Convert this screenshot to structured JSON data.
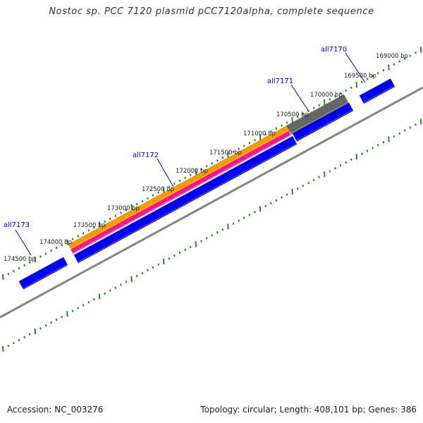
{
  "title": "Nostoc sp. PCC 7120 plasmid pCC7120alpha, complete sequence",
  "footer": {
    "accession": "Accession: NC_003276",
    "topology": "Topology: circular; Length: 408,101 bp; Genes: 386"
  },
  "ticks": [
    {
      "label": "169000 bp",
      "pos": 169000
    },
    {
      "label": "169500 bp",
      "pos": 169500
    },
    {
      "label": "170000 bp",
      "pos": 170000
    },
    {
      "label": "170500 bp",
      "pos": 170500
    },
    {
      "label": "171000 bp",
      "pos": 171000
    },
    {
      "label": "171500 bp",
      "pos": 171500
    },
    {
      "label": "172000 bp",
      "pos": 172000
    },
    {
      "label": "172500 bp",
      "pos": 172500
    },
    {
      "label": "173000 bp",
      "pos": 173000
    },
    {
      "label": "173500 bp",
      "pos": 173500
    },
    {
      "label": "174000 bp",
      "pos": 174000
    },
    {
      "label": "174500 bp",
      "pos": 174500
    }
  ],
  "genes": [
    {
      "name": "all7170"
    },
    {
      "name": "all7171"
    },
    {
      "name": "all7172"
    },
    {
      "name": "all7173"
    }
  ],
  "colors": {
    "backbone": "#808080",
    "tick_green": "#228B22",
    "gene_blue": "#0000ee",
    "gene_orange": "#ff9900",
    "gene_pink": "#ff1493",
    "gene_gray": "#666666",
    "label_blue": "#0000cc"
  }
}
